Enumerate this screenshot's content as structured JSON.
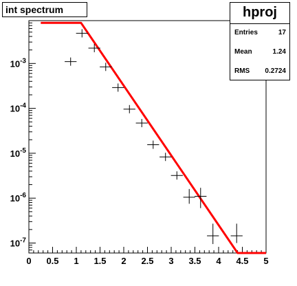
{
  "title_box": "int spectrum",
  "stats": {
    "name": "hproj",
    "rows": [
      {
        "label": "Entries",
        "value": "17"
      },
      {
        "label": "Mean",
        "value": "1.24"
      },
      {
        "label": "RMS",
        "value": "0.2724"
      }
    ]
  },
  "colors": {
    "fit": "#ff0000",
    "markers": "#000000",
    "axes": "#000000"
  },
  "chart_data": {
    "type": "scatter",
    "title": "int spectrum",
    "xlabel": "",
    "ylabel": "",
    "xlim": [
      0,
      5
    ],
    "ylim": [
      6e-08,
      0.009
    ],
    "y_scale": "log",
    "x_ticks": [
      "0",
      "0.5",
      "1",
      "1.5",
      "2",
      "2.5",
      "3",
      "3.5",
      "4",
      "4.5",
      "5"
    ],
    "y_ticks": [
      {
        "value": 1e-07,
        "base": "10",
        "exp": "-7"
      },
      {
        "value": 1e-06,
        "base": "10",
        "exp": "-6"
      },
      {
        "value": 1e-05,
        "base": "10",
        "exp": "-5"
      },
      {
        "value": 0.0001,
        "base": "10",
        "exp": "-4"
      },
      {
        "value": 0.001,
        "base": "10",
        "exp": "-3"
      }
    ],
    "grid": false,
    "series": [
      {
        "kind": "points_with_errors",
        "x": [
          0.88,
          1.12,
          1.38,
          1.62,
          1.88,
          2.12,
          2.38,
          2.62,
          2.88,
          3.12,
          3.38,
          3.62,
          3.88,
          4.38
        ],
        "y": [
          0.0011,
          0.0047,
          0.0022,
          0.00084,
          0.00029,
          9.6e-05,
          4.7e-05,
          1.55e-05,
          8.3e-06,
          3.2e-06,
          1.05e-06,
          1.1e-06,
          1.45e-07,
          1.45e-07
        ],
        "y_low": [
          null,
          null,
          null,
          null,
          null,
          null,
          null,
          null,
          null,
          null,
          7.5e-07,
          6e-07,
          9.5e-08,
          1e-07
        ],
        "y_high": [
          null,
          null,
          null,
          null,
          null,
          null,
          null,
          null,
          null,
          null,
          1.6e-06,
          1.7e-06,
          2.7e-07,
          2.7e-07
        ],
        "x_halfwidth": 0.125
      },
      {
        "kind": "fit_curve",
        "x": [
          0.25,
          1.1,
          4.4,
          4.5,
          5.0
        ],
        "y": [
          0.008,
          0.008,
          6e-08,
          6e-08,
          6e-08
        ]
      }
    ]
  }
}
